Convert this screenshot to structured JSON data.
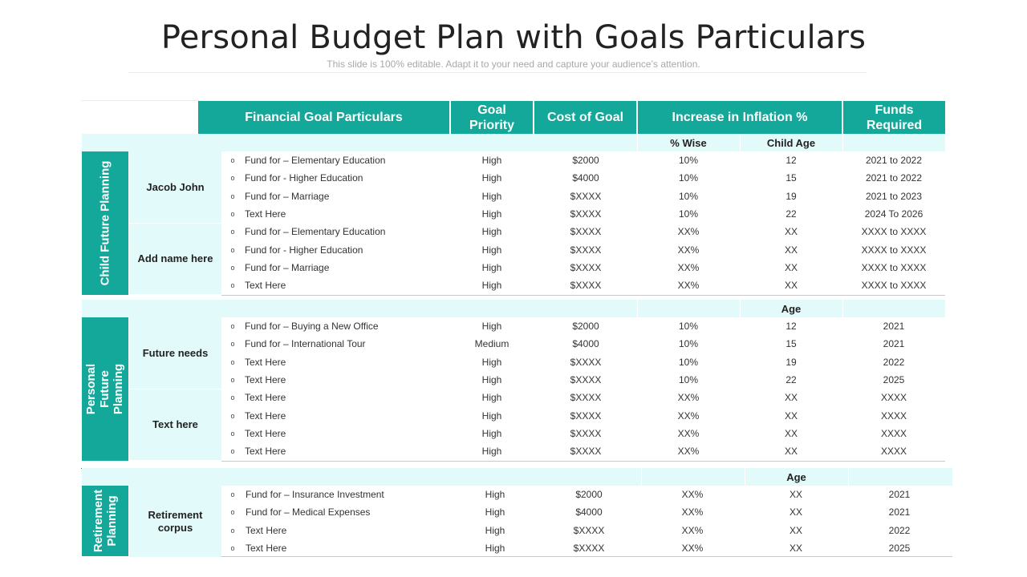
{
  "title": "Personal Budget Plan with Goals Particulars",
  "subtitle": "This slide is 100% editable. Adapt it to your need and capture your audience’s attention.",
  "header": {
    "particulars": "Financial Goal Particulars",
    "priority": "Goal Priority",
    "cost": "Cost of Goal",
    "inflation": "Increase in Inflation %",
    "funds": "Funds Required"
  },
  "bullet": "o",
  "colors": {
    "teal": "#14a89a",
    "light": "#e2fbfa"
  },
  "sections": [
    {
      "label": "Child Future Planning",
      "subheaders": {
        "wise": "% Wise",
        "age": "Child Age"
      },
      "groups": [
        {
          "name": "Jacob John",
          "rows": [
            {
              "goal": "Fund for – Elementary Education",
              "priority": "High",
              "cost": "$2000",
              "wise": "10%",
              "age": "12",
              "funds": "2021 to 2022"
            },
            {
              "goal": "Fund for - Higher Education",
              "priority": "High",
              "cost": "$4000",
              "wise": "10%",
              "age": "15",
              "funds": "2021 to 2022"
            },
            {
              "goal": "Fund for – Marriage",
              "priority": "High",
              "cost": "$XXXX",
              "wise": "10%",
              "age": "19",
              "funds": "2021 to 2023"
            },
            {
              "goal": "Text  Here",
              "priority": "High",
              "cost": "$XXXX",
              "wise": "10%",
              "age": "22",
              "funds": "2024 To 2026"
            }
          ]
        },
        {
          "name": "Add name here",
          "rows": [
            {
              "goal": "Fund for – Elementary Education",
              "priority": "High",
              "cost": "$XXXX",
              "wise": "XX%",
              "age": "XX",
              "funds": "XXXX  to XXXX"
            },
            {
              "goal": "Fund for - Higher Education",
              "priority": "High",
              "cost": "$XXXX",
              "wise": "XX%",
              "age": "XX",
              "funds": "XXXX  to XXXX"
            },
            {
              "goal": "Fund for – Marriage",
              "priority": "High",
              "cost": "$XXXX",
              "wise": "XX%",
              "age": "XX",
              "funds": "XXXX  to XXXX"
            },
            {
              "goal": "Text  Here",
              "priority": "High",
              "cost": "$XXXX",
              "wise": "XX%",
              "age": "XX",
              "funds": "XXXX  to XXXX"
            }
          ]
        }
      ]
    },
    {
      "label": "Personal Future Planning",
      "subheaders": {
        "wise": "",
        "age": "Age"
      },
      "groups": [
        {
          "name": "Future needs",
          "rows": [
            {
              "goal": "Fund for – Buying a New Office",
              "priority": "High",
              "cost": "$2000",
              "wise": "10%",
              "age": "12",
              "funds": "2021"
            },
            {
              "goal": "Fund for – International Tour",
              "priority": "Medium",
              "cost": "$4000",
              "wise": "10%",
              "age": "15",
              "funds": "2021"
            },
            {
              "goal": "Text Here",
              "priority": "High",
              "cost": "$XXXX",
              "wise": "10%",
              "age": "19",
              "funds": "2022"
            },
            {
              "goal": "Text Here",
              "priority": "High",
              "cost": "$XXXX",
              "wise": "10%",
              "age": "22",
              "funds": "2025"
            }
          ]
        },
        {
          "name": "Text here",
          "rows": [
            {
              "goal": "Text Here",
              "priority": "High",
              "cost": "$XXXX",
              "wise": "XX%",
              "age": "XX",
              "funds": "XXXX"
            },
            {
              "goal": "Text Here",
              "priority": "High",
              "cost": "$XXXX",
              "wise": "XX%",
              "age": "XX",
              "funds": "XXXX"
            },
            {
              "goal": "Text Here",
              "priority": "High",
              "cost": "$XXXX",
              "wise": "XX%",
              "age": "XX",
              "funds": "XXXX"
            },
            {
              "goal": "Text Here",
              "priority": "High",
              "cost": "$XXXX",
              "wise": "XX%",
              "age": "XX",
              "funds": "XXXX"
            }
          ]
        }
      ]
    },
    {
      "label": "Retirement Planning",
      "subheaders": {
        "wise": "",
        "age": "Age"
      },
      "groups": [
        {
          "name": "Retirement corpus",
          "rows": [
            {
              "goal": "Fund for – Insurance Investment",
              "priority": "High",
              "cost": "$2000",
              "wise": "XX%",
              "age": "XX",
              "funds": "2021"
            },
            {
              "goal": "Fund for – Medical Expenses",
              "priority": "High",
              "cost": "$4000",
              "wise": "XX%",
              "age": "XX",
              "funds": "2021"
            },
            {
              "goal": "Text Here",
              "priority": "High",
              "cost": "$XXXX",
              "wise": "XX%",
              "age": "XX",
              "funds": "2022"
            },
            {
              "goal": "Text Here",
              "priority": "High",
              "cost": "$XXXX",
              "wise": "XX%",
              "age": "XX",
              "funds": "2025"
            }
          ]
        }
      ]
    }
  ]
}
